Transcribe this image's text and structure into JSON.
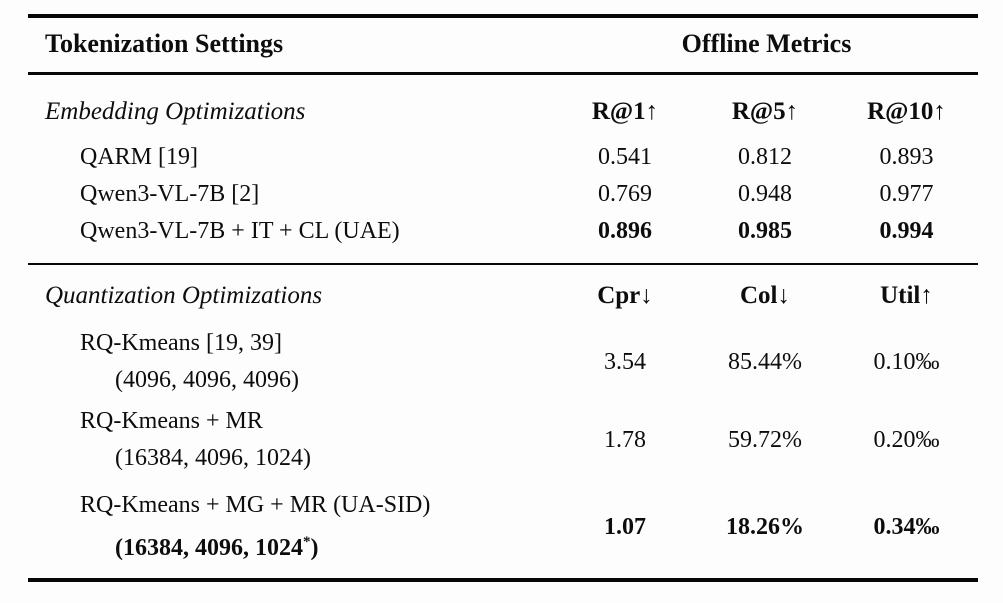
{
  "page": {
    "background_color": "#fdfdfd",
    "text_color": "#0d0d0d"
  },
  "table": {
    "header": {
      "left": "Tokenization Settings",
      "right": "Offline Metrics"
    },
    "sections": [
      {
        "title": "Embedding Optimizations",
        "columns": [
          {
            "name": "R@1",
            "arrow": "↑"
          },
          {
            "name": "R@5",
            "arrow": "↑"
          },
          {
            "name": "R@10",
            "arrow": "↑"
          }
        ],
        "rows": [
          {
            "label": "QARM [19]",
            "values": [
              "0.541",
              "0.812",
              "0.893"
            ]
          },
          {
            "label": "Qwen3-VL-7B [2]",
            "values": [
              "0.769",
              "0.948",
              "0.977"
            ]
          },
          {
            "label": "Qwen3-VL-7B + IT + CL (UAE)",
            "values": [
              "0.896",
              "0.985",
              "0.994"
            ]
          }
        ]
      },
      {
        "title": "Quantization Optimizations",
        "columns": [
          {
            "name": "Cpr",
            "arrow": "↓"
          },
          {
            "name": "Col",
            "arrow": "↓"
          },
          {
            "name": "Util",
            "arrow": "↑"
          }
        ],
        "rows": [
          {
            "label_line1": "RQ-Kmeans [19, 39]",
            "label_line2": "(4096, 4096, 4096)",
            "values": [
              "3.54",
              "85.44%",
              "0.10‰"
            ]
          },
          {
            "label_line1": "RQ-Kmeans + MR",
            "label_line2": "(16384, 4096, 1024)",
            "values": [
              "1.78",
              "59.72%",
              "0.20‰"
            ]
          },
          {
            "label_line1": "RQ-Kmeans + MG + MR (UA-SID)",
            "label_line2_pre": "(16384, 4096, 1024",
            "label_line2_sup": "*",
            "label_line2_post": ")",
            "values": [
              "1.07",
              "18.26%",
              "0.34‰"
            ]
          }
        ]
      }
    ]
  }
}
